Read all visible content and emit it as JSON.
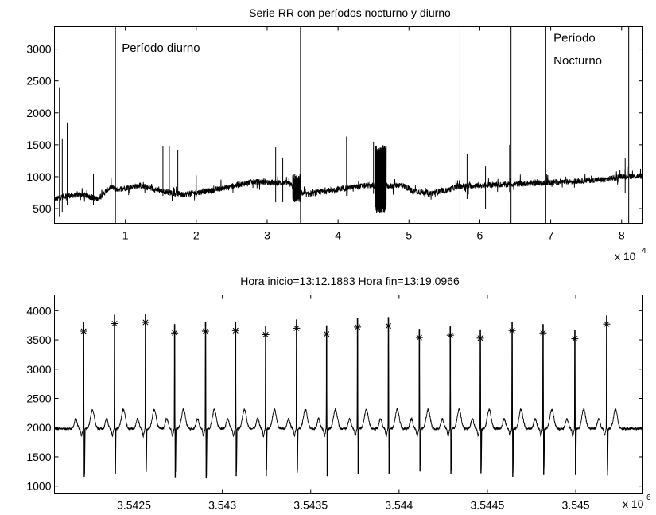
{
  "chart_data": [
    {
      "type": "line",
      "title": "Serie RR  con períodos nocturno y diurno",
      "xlabel": "",
      "ylabel": "",
      "xlim": [
        0,
        8.3
      ],
      "ylim": [
        270,
        3350
      ],
      "x_exponent": {
        "base": "x 10",
        "power": "4"
      },
      "xticks": [
        {
          "value": 1,
          "label": "1"
        },
        {
          "value": 2,
          "label": "2"
        },
        {
          "value": 3,
          "label": "3"
        },
        {
          "value": 4,
          "label": "4"
        },
        {
          "value": 5,
          "label": "5"
        },
        {
          "value": 6,
          "label": "6"
        },
        {
          "value": 7,
          "label": "7"
        },
        {
          "value": 8,
          "label": "8"
        }
      ],
      "yticks": [
        {
          "value": 500,
          "label": "500"
        },
        {
          "value": 1000,
          "label": "1000"
        },
        {
          "value": 1500,
          "label": "1500"
        },
        {
          "value": 2000,
          "label": "2000"
        },
        {
          "value": 2500,
          "label": "2500"
        },
        {
          "value": 3000,
          "label": "3000"
        }
      ],
      "grid": false,
      "baseline": [
        [
          0.0,
          640
        ],
        [
          0.15,
          700
        ],
        [
          0.4,
          720
        ],
        [
          0.6,
          650
        ],
        [
          0.8,
          840
        ],
        [
          0.87,
          800
        ],
        [
          1.2,
          860
        ],
        [
          1.5,
          780
        ],
        [
          1.8,
          720
        ],
        [
          2.2,
          780
        ],
        [
          2.5,
          850
        ],
        [
          2.8,
          920
        ],
        [
          3.1,
          910
        ],
        [
          3.3,
          900
        ],
        [
          3.45,
          760
        ],
        [
          3.55,
          720
        ],
        [
          3.8,
          770
        ],
        [
          4.1,
          820
        ],
        [
          4.4,
          860
        ],
        [
          4.7,
          850
        ],
        [
          4.9,
          870
        ],
        [
          5.05,
          780
        ],
        [
          5.3,
          740
        ],
        [
          5.55,
          790
        ],
        [
          5.7,
          850
        ],
        [
          6.0,
          860
        ],
        [
          6.4,
          880
        ],
        [
          6.8,
          900
        ],
        [
          7.2,
          920
        ],
        [
          7.5,
          940
        ],
        [
          7.8,
          960
        ],
        [
          8.0,
          1010
        ],
        [
          8.3,
          1010
        ]
      ],
      "spikes": [
        {
          "x": 0.07,
          "min": 380,
          "max": 2400
        },
        {
          "x": 0.11,
          "min": 450,
          "max": 1600
        },
        {
          "x": 0.18,
          "min": 550,
          "max": 1850
        },
        {
          "x": 0.55,
          "min": 560,
          "max": 1050
        },
        {
          "x": 1.53,
          "min": 700,
          "max": 1480
        },
        {
          "x": 1.62,
          "min": 700,
          "max": 1480
        },
        {
          "x": 1.74,
          "min": 700,
          "max": 1420
        },
        {
          "x": 2.0,
          "min": 690,
          "max": 1020
        },
        {
          "x": 3.12,
          "min": 600,
          "max": 1460
        },
        {
          "x": 3.22,
          "min": 600,
          "max": 1300
        },
        {
          "x": 4.12,
          "min": 700,
          "max": 1630
        },
        {
          "x": 4.5,
          "min": 730,
          "max": 1550
        },
        {
          "x": 5.72,
          "min": 700,
          "max": 1850
        },
        {
          "x": 5.82,
          "min": 650,
          "max": 1350
        },
        {
          "x": 6.08,
          "min": 500,
          "max": 1160
        },
        {
          "x": 6.42,
          "min": 760,
          "max": 1500
        },
        {
          "x": 8.05,
          "min": 750,
          "max": 1290
        }
      ],
      "bursts": [
        {
          "x0": 4.53,
          "x1": 4.68,
          "min": 430,
          "max": 1500
        },
        {
          "x0": 3.36,
          "x1": 3.47,
          "min": 600,
          "max": 1050
        }
      ],
      "markers": [
        0.86,
        3.47,
        5.72,
        6.44,
        6.93,
        8.1
      ],
      "annotations": [
        {
          "text": "Período diurno",
          "x": 0.95,
          "y": 2960
        },
        {
          "text": "Período",
          "x": 7.04,
          "y": 3110
        },
        {
          "text": "Nocturno",
          "x": 7.04,
          "y": 2760
        }
      ]
    },
    {
      "type": "line",
      "title": "Hora inicio=13:12.1883  Hora fin=13:19.0966",
      "xlabel": "",
      "ylabel": "",
      "xlim": [
        3.54205,
        3.54538
      ],
      "ylim": [
        880,
        4270
      ],
      "x_exponent": {
        "base": "x 10",
        "power": "6"
      },
      "xticks": [
        {
          "value": 3.5425,
          "label": "3.5425"
        },
        {
          "value": 3.543,
          "label": "3.543"
        },
        {
          "value": 3.5435,
          "label": "3.5435"
        },
        {
          "value": 3.544,
          "label": "3.544"
        },
        {
          "value": 3.5445,
          "label": "3.5445"
        },
        {
          "value": 3.545,
          "label": "3.545"
        }
      ],
      "yticks": [
        {
          "value": 1000,
          "label": "1000"
        },
        {
          "value": 1500,
          "label": "1500"
        },
        {
          "value": 2000,
          "label": "2000"
        },
        {
          "value": 2500,
          "label": "2500"
        },
        {
          "value": 3000,
          "label": "3000"
        },
        {
          "value": 3500,
          "label": "3500"
        },
        {
          "value": 4000,
          "label": "4000"
        }
      ],
      "grid": false,
      "ecg_baseline": 1980,
      "beats": [
        {
          "x": 3.542215,
          "peak": 3650,
          "trough": 1160
        },
        {
          "x": 3.54239,
          "peak": 3780,
          "trough": 1200
        },
        {
          "x": 3.542565,
          "peak": 3800,
          "trough": 1240
        },
        {
          "x": 3.54273,
          "peak": 3620,
          "trough": 1150
        },
        {
          "x": 3.542905,
          "peak": 3650,
          "trough": 1130
        },
        {
          "x": 3.543075,
          "peak": 3660,
          "trough": 1170
        },
        {
          "x": 3.543245,
          "peak": 3590,
          "trough": 1170
        },
        {
          "x": 3.54342,
          "peak": 3700,
          "trough": 1230
        },
        {
          "x": 3.54359,
          "peak": 3600,
          "trough": 1170
        },
        {
          "x": 3.543765,
          "peak": 3720,
          "trough": 1200
        },
        {
          "x": 3.54394,
          "peak": 3740,
          "trough": 1210
        },
        {
          "x": 3.544115,
          "peak": 3540,
          "trough": 1250
        },
        {
          "x": 3.54429,
          "peak": 3580,
          "trough": 1210
        },
        {
          "x": 3.54446,
          "peak": 3530,
          "trough": 1220
        },
        {
          "x": 3.54464,
          "peak": 3660,
          "trough": 1160
        },
        {
          "x": 3.544815,
          "peak": 3620,
          "trough": 1190
        },
        {
          "x": 3.544995,
          "peak": 3520,
          "trough": 1190
        },
        {
          "x": 3.545175,
          "peak": 3770,
          "trough": 1180
        }
      ]
    }
  ]
}
